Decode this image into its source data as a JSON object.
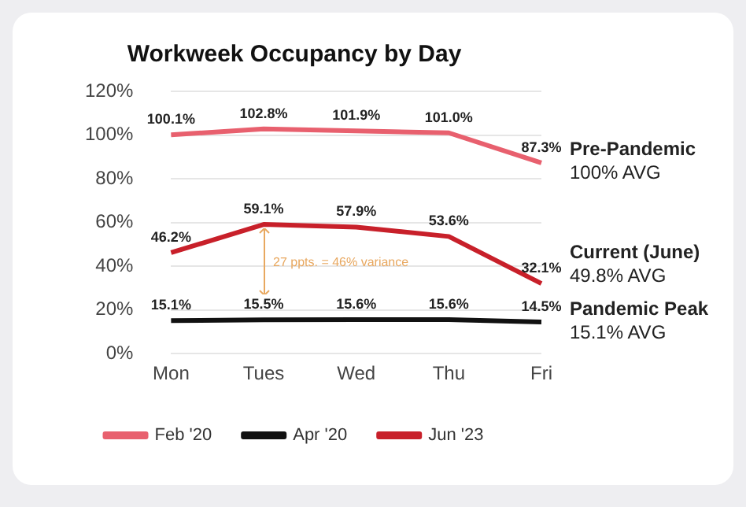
{
  "chart_data": {
    "type": "line",
    "title": "Workweek Occupancy by Day",
    "categories": [
      "Mon",
      "Tues",
      "Wed",
      "Thu",
      "Fri"
    ],
    "series": [
      {
        "name": "Feb '20",
        "color": "#e8606e",
        "values": [
          100.1,
          102.8,
          101.9,
          101.0,
          87.3
        ],
        "value_labels": [
          "100.1%",
          "102.8%",
          "101.9%",
          "101.0%",
          "87.3%"
        ]
      },
      {
        "name": "Apr '20",
        "color": "#111111",
        "values": [
          15.1,
          15.5,
          15.6,
          15.6,
          14.5
        ],
        "value_labels": [
          "15.1%",
          "15.5%",
          "15.6%",
          "15.6%",
          "14.5%"
        ]
      },
      {
        "name": "Jun '23",
        "color": "#c8202a",
        "values": [
          46.2,
          59.1,
          57.9,
          53.6,
          32.1
        ],
        "value_labels": [
          "46.2%",
          "59.1%",
          "57.9%",
          "53.6%",
          "32.1%"
        ]
      }
    ],
    "ylim": [
      0,
      120
    ],
    "yticks": [
      {
        "value": 0,
        "label": "0%"
      },
      {
        "value": 20,
        "label": "20%"
      },
      {
        "value": 40,
        "label": "40%"
      },
      {
        "value": 60,
        "label": "60%"
      },
      {
        "value": 80,
        "label": "80%"
      },
      {
        "value": 100,
        "label": "100%"
      },
      {
        "value": 120,
        "label": "120%"
      }
    ],
    "grid": "y",
    "legend": "bottom",
    "marker": "none",
    "line_style": "solid",
    "annotations": [
      "27 ppts. = 46% variance",
      {
        "text": "Pre-Pandemic\n100% AVG",
        "x": "Fri",
        "y": 87.3
      },
      {
        "text": "Current (June)\n49.8% AVG",
        "x": "Fri",
        "y": 32.1
      },
      {
        "text": "Pandemic Peak\n15.1% AVG",
        "x": "Fri",
        "y": 14.5
      }
    ]
  }
}
